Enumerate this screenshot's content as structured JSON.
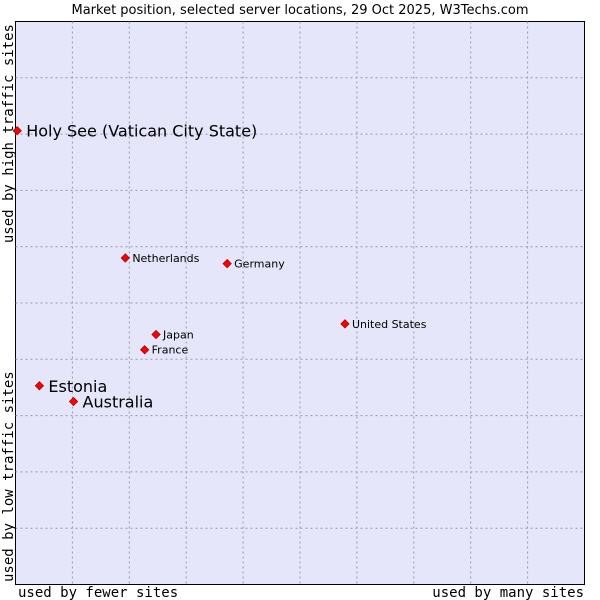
{
  "chart_data": {
    "type": "scatter",
    "title": "Market position, selected server locations, 29 Oct 2025, W3Techs.com",
    "xlabel_left": "used by fewer sites",
    "xlabel_right": "used by many sites",
    "ylabel_bottom": "used by low traffic sites",
    "ylabel_top": "used by high traffic sites",
    "xlim": [
      0,
      10
    ],
    "ylim": [
      0,
      10
    ],
    "grid": true,
    "points": [
      {
        "label": "Holy See (Vatican City State)",
        "x": 0.03,
        "y": 8.06,
        "emphasis": true
      },
      {
        "label": "Netherlands",
        "x": 1.93,
        "y": 5.8,
        "emphasis": false
      },
      {
        "label": "Germany",
        "x": 3.72,
        "y": 5.7,
        "emphasis": false
      },
      {
        "label": "United States",
        "x": 5.79,
        "y": 4.63,
        "emphasis": false
      },
      {
        "label": "Japan",
        "x": 2.47,
        "y": 4.44,
        "emphasis": false
      },
      {
        "label": "France",
        "x": 2.27,
        "y": 4.17,
        "emphasis": false
      },
      {
        "label": "Estonia",
        "x": 0.42,
        "y": 3.53,
        "emphasis": true
      },
      {
        "label": "Australia",
        "x": 1.02,
        "y": 3.25,
        "emphasis": true
      }
    ]
  },
  "colors": {
    "plot_bg": "#e6e6fa",
    "grid": "#9999aa",
    "marker": "#ff0000",
    "axis_text": "#000000"
  }
}
